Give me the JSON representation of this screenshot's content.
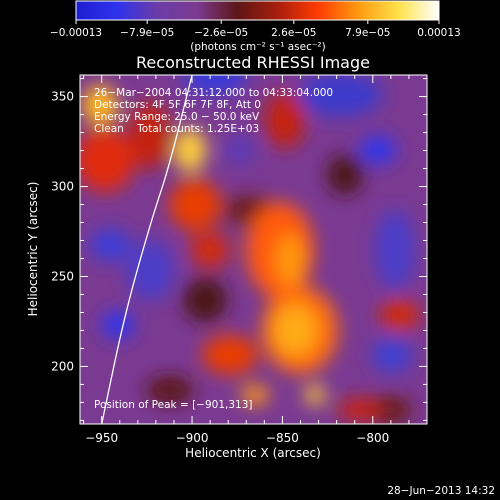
{
  "chart_data": {
    "type": "heatmap",
    "title": "Reconstructed RHESSI Image",
    "xlabel": "Heliocentric X (arcsec)",
    "ylabel": "Heliocentric Y (arcsec)",
    "xlim": [
      -962,
      -770
    ],
    "ylim": [
      168,
      362
    ],
    "x_ticks": [
      -950,
      -900,
      -850,
      -800
    ],
    "x_tick_labels": [
      "−950",
      "−900",
      "−850",
      "−800"
    ],
    "y_ticks": [
      200,
      250,
      300,
      350
    ],
    "y_tick_labels": [
      "200",
      "250",
      "300",
      "350"
    ],
    "colorbar": {
      "min": -0.00013,
      "max": 0.00013,
      "ticks": [
        -0.00013,
        -7.9e-05,
        -2.6e-05,
        2.6e-05,
        7.9e-05,
        0.00013
      ],
      "tick_labels": [
        "−0.00013",
        "−7.9e−05",
        "−2.6e−05",
        "2.6e−05",
        "7.9e−05",
        "0.00013"
      ],
      "unit": "(photons cm⁻² s⁻¹ asec⁻²)",
      "stops": [
        "#1e1ed2",
        "#2d32ee",
        "#6a3ca8",
        "#7b3a90",
        "#5e1616",
        "#a81e0e",
        "#ff3c00",
        "#ff9a10",
        "#ffe24a",
        "#ffffff"
      ]
    },
    "limb_curve": [
      [
        -950,
        168
      ],
      [
        -937,
        230
      ],
      [
        -922,
        283
      ],
      [
        -913,
        310
      ],
      [
        -900,
        362
      ]
    ],
    "peak": [
      -901,
      313
    ],
    "annotations": [
      "26−Mar−2004 04:31:12.000 to 04:33:04.000",
      "Detectors: 4F 5F 6F 7F 8F, Att 0",
      "Energy Range: 25.0 − 50.0 keV",
      "Clean    Total counts: 1.25E+03",
      "Position of Peak = [−901,313]"
    ],
    "footer": "28−Jun−2013 14:32"
  }
}
